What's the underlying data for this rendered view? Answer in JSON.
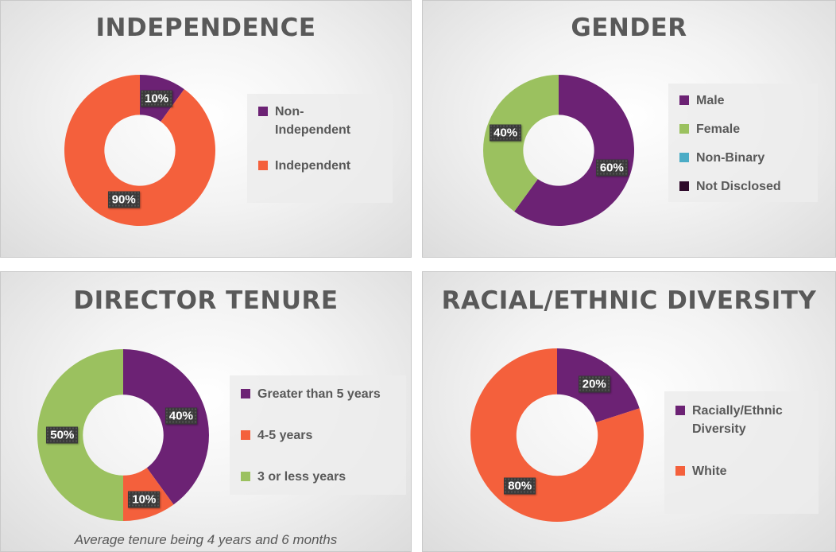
{
  "colors": {
    "purple": "#6c2274",
    "orange": "#f4603c",
    "green": "#9bc15f",
    "teal": "#4bacc6",
    "dark": "#2e0a2a"
  },
  "chart_data": [
    {
      "type": "pie",
      "donut": true,
      "title": "INDEPENDENCE",
      "categories": [
        "Non-Independent",
        "Independent"
      ],
      "legend_labels": [
        "Non-\nIndependent",
        "Independent"
      ],
      "values": [
        10,
        90
      ],
      "labels": [
        "10%",
        "90%"
      ],
      "colors": [
        "#6c2274",
        "#f4603c"
      ],
      "legend": "right"
    },
    {
      "type": "pie",
      "donut": true,
      "title": "GENDER",
      "categories": [
        "Male",
        "Female",
        "Non-Binary",
        "Not Disclosed"
      ],
      "legend_labels": [
        "Male",
        "Female",
        "Non-Binary",
        "Not Disclosed"
      ],
      "values": [
        60,
        40,
        0,
        0
      ],
      "labels": [
        "60%",
        "40%",
        "",
        ""
      ],
      "colors": [
        "#6c2274",
        "#9bc15f",
        "#4bacc6",
        "#2e0a2a"
      ],
      "legend": "right"
    },
    {
      "type": "pie",
      "donut": true,
      "title": "DIRECTOR TENURE",
      "categories": [
        "Greater than 5 years",
        "4-5 years",
        "3 or less years"
      ],
      "legend_labels": [
        "Greater than 5 years",
        "4-5 years",
        "3 or less years"
      ],
      "values": [
        40,
        10,
        50
      ],
      "labels": [
        "40%",
        "10%",
        "50%"
      ],
      "colors": [
        "#6c2274",
        "#f4603c",
        "#9bc15f"
      ],
      "legend": "right",
      "footnote": "Average tenure being 4 years and 6 months"
    },
    {
      "type": "pie",
      "donut": true,
      "title": "RACIAL/ETHNIC DIVERSITY",
      "categories": [
        "Racially/Ethnic Diversity",
        "White"
      ],
      "legend_labels": [
        "Racially/Ethnic\nDiversity",
        "White"
      ],
      "values": [
        20,
        80
      ],
      "labels": [
        "20%",
        "80%"
      ],
      "colors": [
        "#6c2274",
        "#f4603c"
      ],
      "legend": "right"
    }
  ]
}
